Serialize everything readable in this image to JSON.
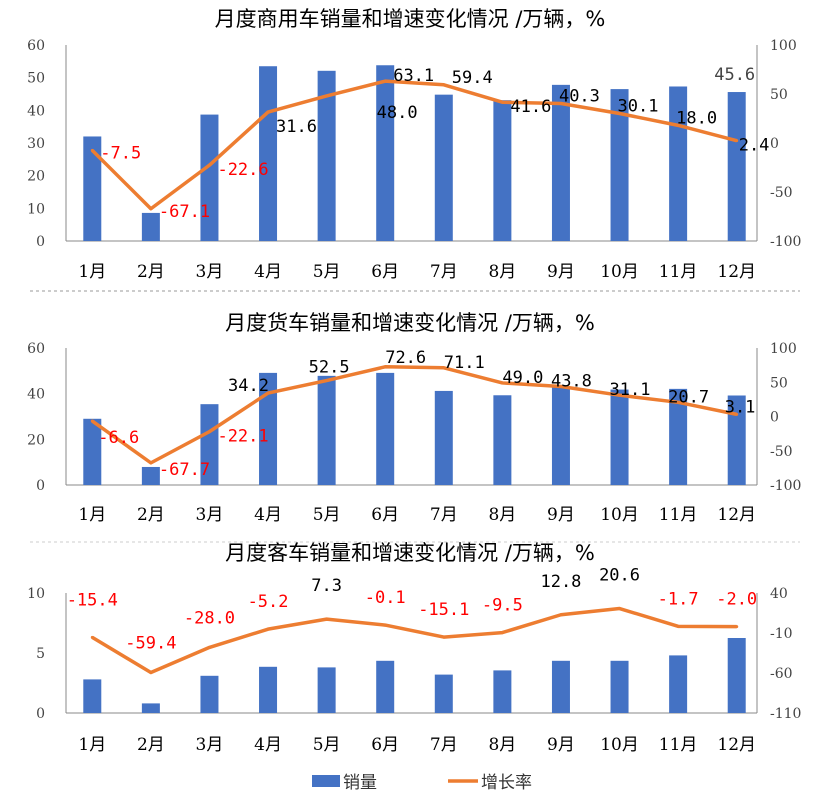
{
  "chart_data": [
    {
      "type": "bar+line",
      "title": "月度商用车销量和增速变化情况   /万辆，%",
      "categories": [
        "1月",
        "2月",
        "3月",
        "4月",
        "5月",
        "6月",
        "7月",
        "8月",
        "9月",
        "10月",
        "11月",
        "12月"
      ],
      "series": [
        {
          "name": "销量",
          "type": "bar",
          "axis": "left",
          "values": [
            32.0,
            8.6,
            38.7,
            53.5,
            52.1,
            53.8,
            44.8,
            43.1,
            47.8,
            46.5,
            47.3,
            45.6
          ]
        },
        {
          "name": "增长率",
          "type": "line",
          "axis": "right",
          "values": [
            -7.5,
            -67.1,
            -22.6,
            31.6,
            48.0,
            63.1,
            59.4,
            41.6,
            40.3,
            30.1,
            18.0,
            2.4
          ],
          "labels": [
            "-7.5",
            "-67.1",
            "-22.6",
            "31.6",
            "48.0",
            "63.1",
            "59.4",
            "41.6",
            "40.3",
            "30.1",
            "18.0",
            "2.4"
          ]
        }
      ],
      "extra_labels": [
        "45.6"
      ],
      "ylim_left": [
        0,
        60
      ],
      "yticks_left": [
        0,
        10,
        20,
        30,
        40,
        50,
        60
      ],
      "ylim_right": [
        -100,
        100
      ],
      "yticks_right": [
        -100,
        -50,
        0,
        50,
        100
      ]
    },
    {
      "type": "bar+line",
      "title": "月度货车销量和增速变化情况   /万辆，%",
      "categories": [
        "1月",
        "2月",
        "3月",
        "4月",
        "5月",
        "6月",
        "7月",
        "8月",
        "9月",
        "10月",
        "11月",
        "12月"
      ],
      "series": [
        {
          "name": "销量",
          "type": "bar",
          "axis": "left",
          "values": [
            29.0,
            7.9,
            35.4,
            49.1,
            47.8,
            49.1,
            41.2,
            39.3,
            42.7,
            41.8,
            42.1,
            39.2
          ]
        },
        {
          "name": "增长率",
          "type": "line",
          "axis": "right",
          "values": [
            -6.6,
            -67.7,
            -22.1,
            34.2,
            52.5,
            72.6,
            71.1,
            49.0,
            43.8,
            31.1,
            20.7,
            3.1
          ],
          "labels": [
            "-6.6",
            "-67.7",
            "-22.1",
            "34.2",
            "52.5",
            "72.6",
            "71.1",
            "49.0",
            "43.8",
            "31.1",
            "20.7",
            "3.1"
          ]
        }
      ],
      "ylim_left": [
        0,
        60
      ],
      "yticks_left": [
        0,
        20,
        40,
        60
      ],
      "ylim_right": [
        -100,
        100
      ],
      "yticks_right": [
        -100,
        -50,
        0,
        50,
        100
      ]
    },
    {
      "type": "bar+line",
      "title": "月度客车销量和增速变化情况   /万辆，%",
      "categories": [
        "1月",
        "2月",
        "3月",
        "4月",
        "5月",
        "6月",
        "7月",
        "8月",
        "9月",
        "10月",
        "11月",
        "12月"
      ],
      "series": [
        {
          "name": "销量",
          "type": "bar",
          "axis": "left",
          "values": [
            2.8,
            0.8,
            3.1,
            3.85,
            3.8,
            4.35,
            3.2,
            3.55,
            4.35,
            4.35,
            4.8,
            6.25
          ]
        },
        {
          "name": "增长率",
          "type": "line",
          "axis": "right",
          "values": [
            -15.4,
            -59.4,
            -28.0,
            -5.2,
            7.3,
            -0.1,
            -15.1,
            -9.5,
            12.8,
            20.6,
            -1.7,
            -2.0
          ],
          "labels": [
            "-15.4",
            "-59.4",
            "-28.0",
            "-5.2",
            "7.3",
            "-0.1",
            "-15.1",
            "-9.5",
            "12.8",
            "20.6",
            "-1.7",
            "-2.0"
          ]
        }
      ],
      "ylim_left": [
        0,
        10
      ],
      "yticks_left": [
        0,
        5,
        10
      ],
      "ylim_right": [
        -110,
        40
      ],
      "yticks_right": [
        -110,
        -60,
        -10,
        40
      ]
    }
  ],
  "legend": {
    "bar_label": "销量",
    "line_label": "增长率",
    "position": "bottom"
  },
  "colors": {
    "bar": "#4472C4",
    "line": "#ED7D31",
    "negative_label": "#FF0000",
    "positive_label": "#000000"
  }
}
